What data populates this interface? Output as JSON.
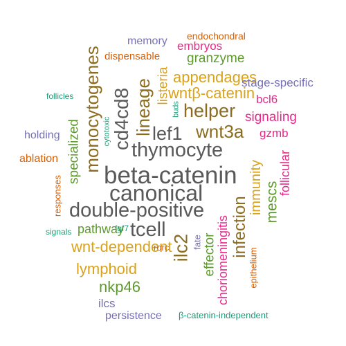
{
  "colors": {
    "gray": "#595959",
    "brown": "#8C6D1F",
    "gold": "#D9A21B",
    "green": "#5E9A2E",
    "teal": "#1B9E77",
    "magenta": "#E7298A",
    "purple": "#7570B3",
    "orange": "#D95F02"
  },
  "words": [
    "beta-catenin",
    "canonical",
    "double-positive",
    "thymocyte",
    "tcell",
    "lef1",
    "cd4cd8",
    "monocytogenes",
    "lineage",
    "helper",
    "wnt3a",
    "infection",
    "ilc2",
    "immunity",
    "wnt-dependent",
    "lymphoid",
    "wntβ-catenin",
    "appendages",
    "listeria",
    "mescs",
    "nkp46",
    "specialized",
    "granzyme",
    "effector",
    "pathway",
    "signaling",
    "follicular",
    "choriomeningitis",
    "bcl6",
    "embryos",
    "gzmb",
    "ilcs",
    "stage-specific",
    "memory",
    "endochondral",
    "dispensable",
    "holding",
    "ablation",
    "fate",
    "persistence",
    "β-catenin-independent",
    "responses",
    "epithelium",
    "rorc",
    "follicles",
    "signals",
    "fgf7",
    "cytotoxic",
    "buds"
  ]
}
